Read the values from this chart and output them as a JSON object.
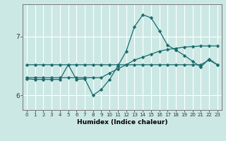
{
  "xlabel": "Humidex (Indice chaleur)",
  "bg_color": "#cce8e5",
  "grid_color": "#ffffff",
  "line_color": "#1a6b6b",
  "xlim": [
    -0.5,
    23.5
  ],
  "ylim": [
    5.75,
    7.55
  ],
  "yticks": [
    6,
    7
  ],
  "xticks": [
    0,
    1,
    2,
    3,
    4,
    5,
    6,
    7,
    8,
    9,
    10,
    11,
    12,
    13,
    14,
    15,
    16,
    17,
    18,
    19,
    20,
    21,
    22,
    23
  ],
  "x": [
    0,
    1,
    2,
    3,
    4,
    5,
    6,
    7,
    8,
    9,
    10,
    11,
    12,
    13,
    14,
    15,
    16,
    17,
    18,
    19,
    20,
    21,
    22,
    23
  ],
  "line1": [
    6.52,
    6.52,
    6.52,
    6.52,
    6.52,
    6.52,
    6.52,
    6.52,
    6.52,
    6.52,
    6.52,
    6.52,
    6.52,
    6.52,
    6.52,
    6.52,
    6.52,
    6.52,
    6.52,
    6.52,
    6.52,
    6.52,
    6.6,
    6.52
  ],
  "line2": [
    6.3,
    6.3,
    6.3,
    6.3,
    6.3,
    6.3,
    6.3,
    6.3,
    6.3,
    6.3,
    6.38,
    6.45,
    6.52,
    6.6,
    6.65,
    6.7,
    6.75,
    6.78,
    6.8,
    6.82,
    6.83,
    6.84,
    6.84,
    6.84
  ],
  "line3": [
    6.28,
    6.27,
    6.27,
    6.27,
    6.27,
    6.52,
    6.27,
    6.28,
    6.0,
    6.1,
    6.27,
    6.5,
    6.75,
    7.17,
    7.37,
    7.32,
    7.1,
    6.85,
    6.77,
    6.68,
    6.58,
    6.48,
    6.62,
    6.52
  ]
}
